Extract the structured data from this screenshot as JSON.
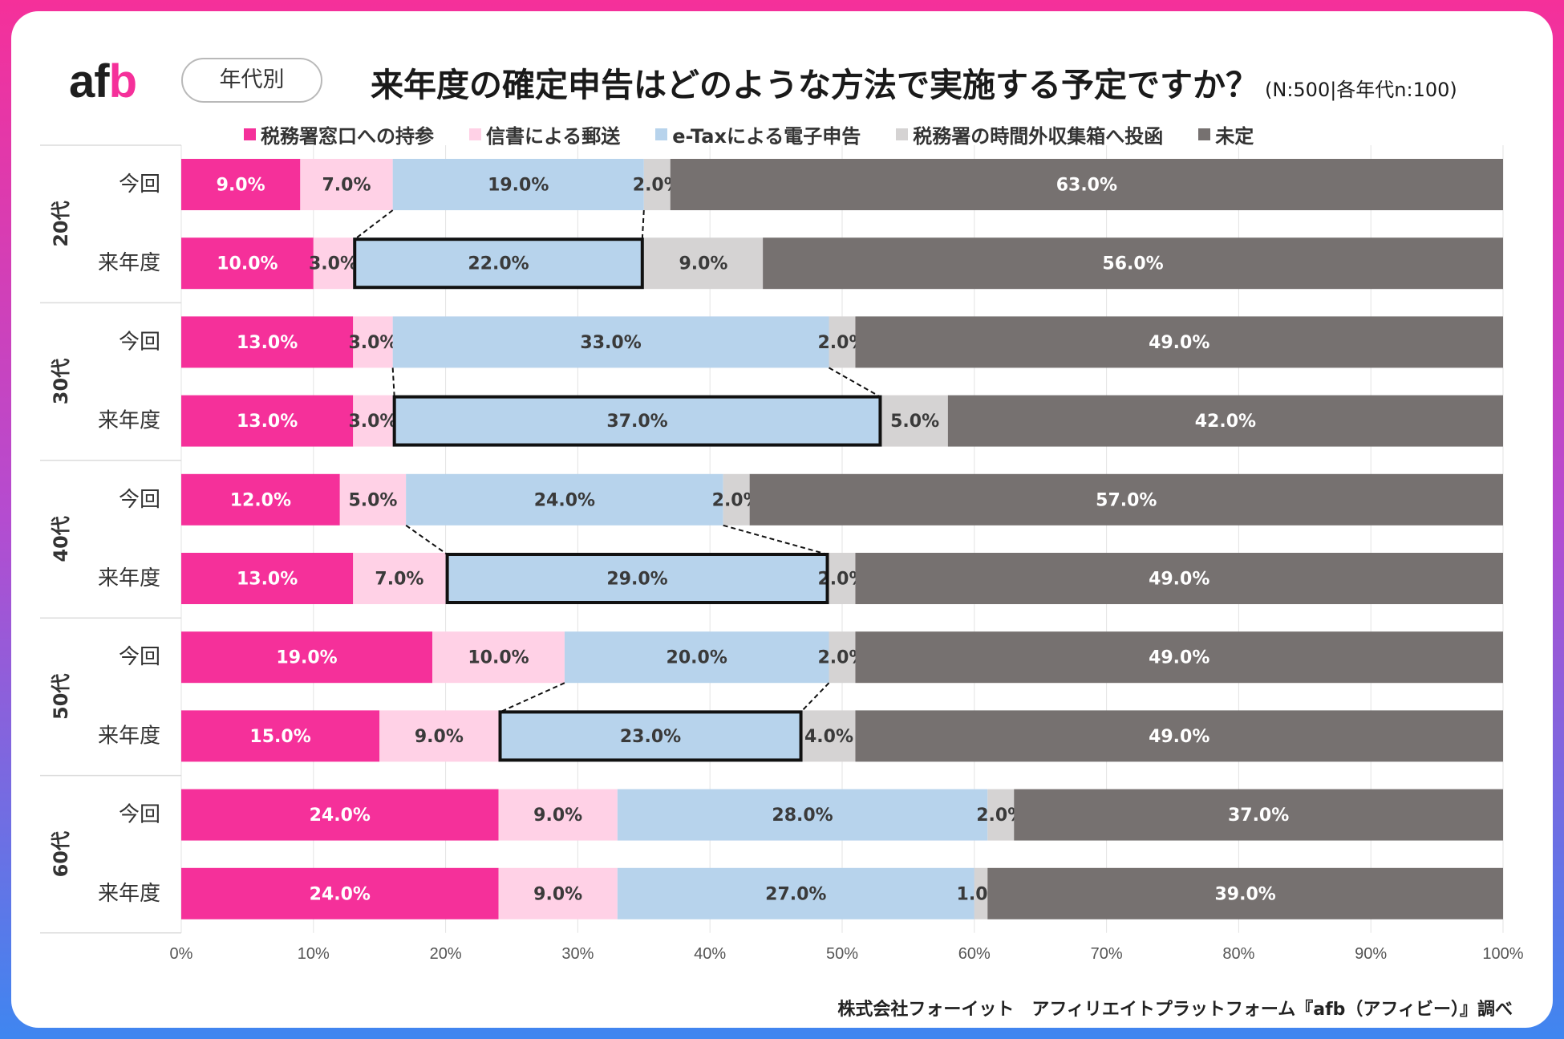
{
  "header": {
    "logo_main": "af",
    "logo_accent": "b",
    "badge": "年代別",
    "title": "来年度の確定申告はどのような方法で実施する予定ですか？",
    "note": "(N:500|各年代n:100)"
  },
  "source": "株式会社フォーイット　アフィリエイトプラットフォーム『afb（アフィビー）』調べ",
  "colors": {
    "accent": "#f5309a",
    "window": "#ffd1e6",
    "mail": "#b7d3ec",
    "etax": "#d5d3d3",
    "undecided": "#767170"
  },
  "chart_data": {
    "type": "bar",
    "orientation": "horizontal-stacked-100",
    "legend": [
      {
        "name": "税務署窓口への持参",
        "color": "#f5309a"
      },
      {
        "name": "信書による郵送",
        "color": "#ffd1e6"
      },
      {
        "name": "e-Taxによる電子申告",
        "color": "#b7d3ec"
      },
      {
        "name": "税務署の時間外収集箱へ投函",
        "color": "#d5d3d3"
      },
      {
        "name": "未定",
        "color": "#767170"
      }
    ],
    "groups": [
      {
        "label": "20代",
        "bars": [
          {
            "label": "今回",
            "values": [
              9,
              7,
              19,
              2,
              63
            ]
          },
          {
            "label": "来年度",
            "values": [
              10,
              3,
              22,
              9,
              56
            ]
          }
        ]
      },
      {
        "label": "30代",
        "bars": [
          {
            "label": "今回",
            "values": [
              13,
              3,
              33,
              2,
              49
            ]
          },
          {
            "label": "来年度",
            "values": [
              13,
              3,
              37,
              5,
              42
            ]
          }
        ]
      },
      {
        "label": "40代",
        "bars": [
          {
            "label": "今回",
            "values": [
              12,
              5,
              24,
              2,
              57
            ]
          },
          {
            "label": "来年度",
            "values": [
              13,
              7,
              29,
              2,
              49
            ]
          }
        ]
      },
      {
        "label": "50代",
        "bars": [
          {
            "label": "今回",
            "values": [
              19,
              10,
              20,
              2,
              49
            ]
          },
          {
            "label": "来年度",
            "values": [
              15,
              9,
              23,
              4,
              49
            ]
          }
        ]
      },
      {
        "label": "60代",
        "bars": [
          {
            "label": "今回",
            "values": [
              24,
              9,
              28,
              2,
              37
            ]
          },
          {
            "label": "来年度",
            "values": [
              24,
              9,
              27,
              1,
              39
            ]
          }
        ]
      }
    ],
    "highlight_series": 2,
    "highlight_groups": [
      0,
      1,
      2,
      3
    ],
    "x_ticks": [
      "0%",
      "10%",
      "20%",
      "30%",
      "40%",
      "50%",
      "60%",
      "70%",
      "80%",
      "90%",
      "100%"
    ],
    "xlim": [
      0,
      100
    ],
    "grid": true,
    "value_suffix": "%",
    "value_decimals": 1
  }
}
